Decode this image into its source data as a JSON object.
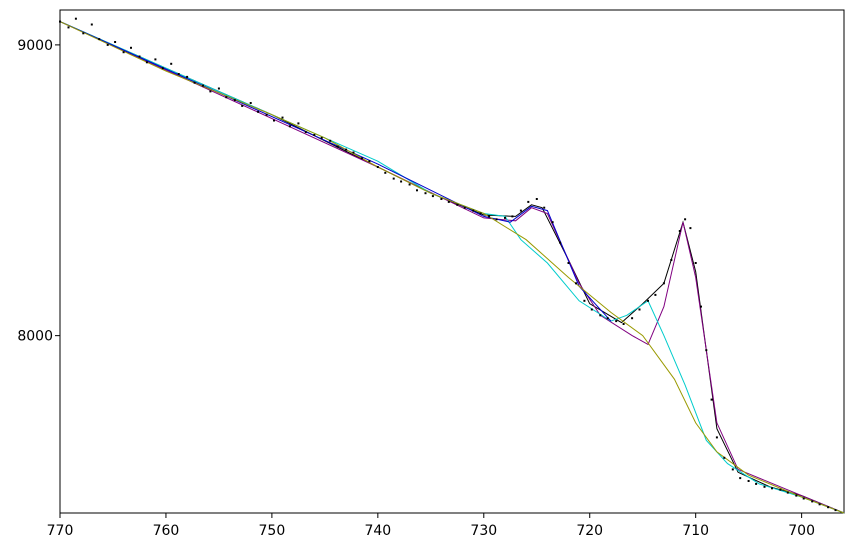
{
  "chart_data": {
    "type": "scatter",
    "title": "",
    "xlabel": "",
    "ylabel": "",
    "x_reversed": true,
    "xlim": [
      770,
      696
    ],
    "ylim": [
      7390,
      9120
    ],
    "grid": false,
    "legend": "none",
    "x_ticks": [
      {
        "value": 770,
        "label": "770"
      },
      {
        "value": 760,
        "label": "760"
      },
      {
        "value": 750,
        "label": "750"
      },
      {
        "value": 740,
        "label": "740"
      },
      {
        "value": 730,
        "label": "730"
      },
      {
        "value": 720,
        "label": "720"
      },
      {
        "value": 710,
        "label": "710"
      },
      {
        "value": 700,
        "label": "700"
      }
    ],
    "y_ticks": [
      {
        "value": 9000,
        "label": "9000"
      },
      {
        "value": 8000,
        "label": "8000"
      }
    ],
    "measured_points": [
      [
        770,
        9080
      ],
      [
        769.2,
        9060
      ],
      [
        768.5,
        9090
      ],
      [
        767.8,
        9040
      ],
      [
        767,
        9070
      ],
      [
        766.3,
        9020
      ],
      [
        765.5,
        9000
      ],
      [
        764.8,
        9010
      ],
      [
        764,
        8975
      ],
      [
        763.3,
        8990
      ],
      [
        762.5,
        8960
      ],
      [
        761.8,
        8940
      ],
      [
        761,
        8950
      ],
      [
        760.3,
        8920
      ],
      [
        759.5,
        8935
      ],
      [
        758.8,
        8900
      ],
      [
        758,
        8890
      ],
      [
        757.3,
        8870
      ],
      [
        756.5,
        8860
      ],
      [
        755.8,
        8840
      ],
      [
        755,
        8850
      ],
      [
        754.3,
        8820
      ],
      [
        753.5,
        8810
      ],
      [
        752.8,
        8790
      ],
      [
        752,
        8800
      ],
      [
        751.3,
        8770
      ],
      [
        750.5,
        8760
      ],
      [
        749.8,
        8740
      ],
      [
        749,
        8750
      ],
      [
        748.3,
        8720
      ],
      [
        747.5,
        8730
      ],
      [
        746.8,
        8700
      ],
      [
        746,
        8690
      ],
      [
        745.3,
        8680
      ],
      [
        744.5,
        8670
      ],
      [
        743.8,
        8650
      ],
      [
        743,
        8640
      ],
      [
        742.3,
        8630
      ],
      [
        741.5,
        8610
      ],
      [
        740.8,
        8600
      ],
      [
        740,
        8580
      ],
      [
        739.3,
        8560
      ],
      [
        738.5,
        8540
      ],
      [
        737.8,
        8530
      ],
      [
        737,
        8520
      ],
      [
        736.3,
        8500
      ],
      [
        735.5,
        8490
      ],
      [
        734.8,
        8480
      ],
      [
        734,
        8470
      ],
      [
        733.3,
        8460
      ],
      [
        732.5,
        8450
      ],
      [
        731.8,
        8440
      ],
      [
        731,
        8430
      ],
      [
        730.3,
        8420
      ],
      [
        729.5,
        8410
      ],
      [
        728.8,
        8400
      ],
      [
        728,
        8405
      ],
      [
        727.3,
        8410
      ],
      [
        726.5,
        8430
      ],
      [
        725.8,
        8460
      ],
      [
        725,
        8470
      ],
      [
        724.3,
        8440
      ],
      [
        723.5,
        8390
      ],
      [
        722.8,
        8320
      ],
      [
        722,
        8250
      ],
      [
        721.3,
        8180
      ],
      [
        720.5,
        8120
      ],
      [
        719.8,
        8090
      ],
      [
        719,
        8070
      ],
      [
        718.3,
        8060
      ],
      [
        717.5,
        8050
      ],
      [
        716.8,
        8040
      ],
      [
        716,
        8060
      ],
      [
        715.3,
        8090
      ],
      [
        714.5,
        8120
      ],
      [
        713.8,
        8140
      ],
      [
        713,
        8180
      ],
      [
        712.3,
        8260
      ],
      [
        711.5,
        8360
      ],
      [
        711,
        8400
      ],
      [
        710.5,
        8370
      ],
      [
        710,
        8250
      ],
      [
        709.5,
        8100
      ],
      [
        709,
        7950
      ],
      [
        708.5,
        7780
      ],
      [
        708,
        7650
      ],
      [
        707.3,
        7580
      ],
      [
        706.5,
        7540
      ],
      [
        705.8,
        7510
      ],
      [
        705,
        7500
      ],
      [
        704.3,
        7490
      ],
      [
        703.5,
        7480
      ],
      [
        702.8,
        7475
      ],
      [
        702,
        7470
      ],
      [
        701.3,
        7460
      ],
      [
        700.5,
        7450
      ],
      [
        699.8,
        7440
      ],
      [
        699,
        7430
      ],
      [
        698.3,
        7420
      ],
      [
        697.5,
        7410
      ],
      [
        696.8,
        7400
      ]
    ],
    "series": [
      {
        "color": "#000000",
        "points": [
          [
            770,
            9080
          ],
          [
            760,
            8920
          ],
          [
            750,
            8760
          ],
          [
            740,
            8580
          ],
          [
            735,
            8490
          ],
          [
            730,
            8415
          ],
          [
            727,
            8410
          ],
          [
            725.5,
            8450
          ],
          [
            724.5,
            8440
          ],
          [
            722,
            8260
          ],
          [
            720,
            8110
          ],
          [
            717,
            8045
          ],
          [
            715,
            8110
          ],
          [
            713,
            8180
          ],
          [
            711.2,
            8390
          ],
          [
            710,
            8220
          ],
          [
            708,
            7680
          ],
          [
            706,
            7530
          ],
          [
            703,
            7480
          ],
          [
            700,
            7450
          ],
          [
            696,
            7390
          ]
        ]
      },
      {
        "color": "#800080",
        "points": [
          [
            770,
            9080
          ],
          [
            740,
            8580
          ],
          [
            730,
            8405
          ],
          [
            727,
            8395
          ],
          [
            725.5,
            8440
          ],
          [
            724,
            8420
          ],
          [
            721,
            8180
          ],
          [
            719,
            8070
          ],
          [
            716,
            8000
          ],
          [
            714.5,
            7970
          ],
          [
            713,
            8100
          ],
          [
            711.2,
            8390
          ],
          [
            710,
            8200
          ],
          [
            708,
            7700
          ],
          [
            706,
            7540
          ],
          [
            700,
            7450
          ],
          [
            696,
            7390
          ]
        ]
      },
      {
        "color": "#00cccc",
        "points": [
          [
            770,
            9080
          ],
          [
            750,
            8760
          ],
          [
            745,
            8680
          ],
          [
            740,
            8600
          ],
          [
            735,
            8490
          ],
          [
            730,
            8420
          ],
          [
            728,
            8410
          ],
          [
            726.5,
            8330
          ],
          [
            724,
            8250
          ],
          [
            721,
            8120
          ],
          [
            718,
            8050
          ],
          [
            716.5,
            8070
          ],
          [
            714.5,
            8120
          ],
          [
            713,
            8000
          ],
          [
            711,
            7830
          ],
          [
            709,
            7640
          ],
          [
            707,
            7560
          ],
          [
            704,
            7490
          ],
          [
            700,
            7445
          ],
          [
            696,
            7390
          ]
        ]
      },
      {
        "color": "#0000cc",
        "points": [
          [
            770,
            9080
          ],
          [
            740,
            8590
          ],
          [
            730,
            8410
          ],
          [
            727.5,
            8390
          ],
          [
            725.5,
            8445
          ],
          [
            724,
            8430
          ],
          [
            721,
            8170
          ],
          [
            718,
            8050
          ]
        ]
      },
      {
        "color": "#999900",
        "points": [
          [
            770,
            9080
          ],
          [
            760,
            8910
          ],
          [
            750,
            8760
          ],
          [
            745,
            8680
          ],
          [
            740,
            8580
          ],
          [
            735,
            8490
          ],
          [
            730,
            8420
          ],
          [
            726,
            8330
          ],
          [
            722,
            8200
          ],
          [
            718,
            8080
          ],
          [
            715,
            8000
          ],
          [
            712,
            7850
          ],
          [
            710,
            7700
          ],
          [
            708,
            7600
          ],
          [
            705,
            7520
          ],
          [
            700,
            7445
          ],
          [
            696,
            7390
          ]
        ]
      }
    ]
  }
}
